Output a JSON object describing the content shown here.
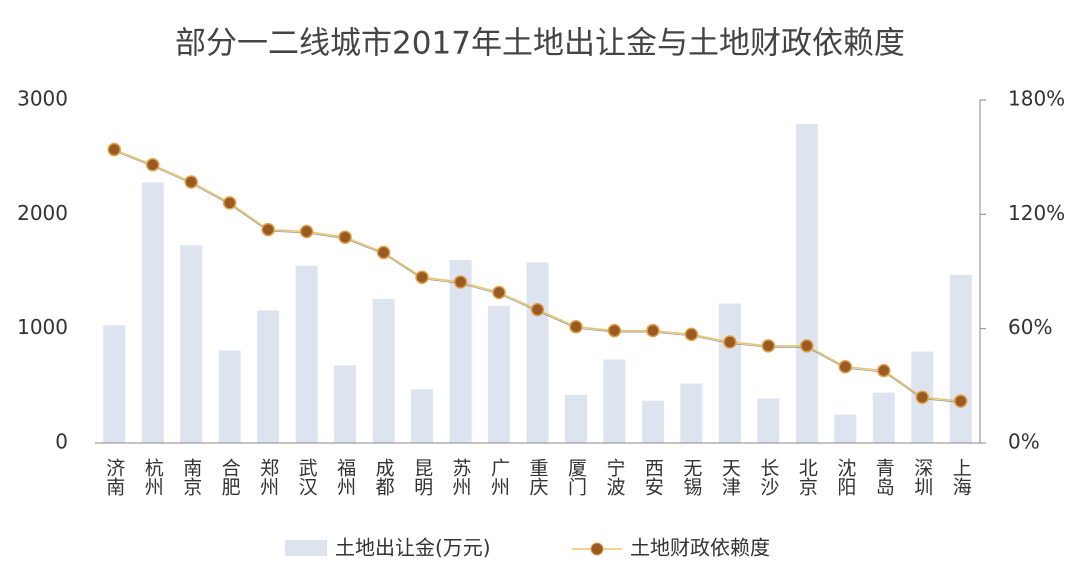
{
  "chart_data": {
    "type": "bar-line",
    "title": "部分一二线城市2017年土地出让金与土地财政依赖度",
    "categories": [
      "济南",
      "杭州",
      "南京",
      "合肥",
      "郑州",
      "武汉",
      "福州",
      "成都",
      "昆明",
      "苏州",
      "广州",
      "重庆",
      "厦门",
      "宁波",
      "西安",
      "无锡",
      "天津",
      "长沙",
      "北京",
      "沈阳",
      "青岛",
      "深圳",
      "上海"
    ],
    "series": [
      {
        "name": "土地出让金(万元)",
        "type": "bar",
        "color": "#dde4ef",
        "values": [
          1030,
          2280,
          1730,
          810,
          1160,
          1550,
          680,
          1260,
          470,
          1600,
          1200,
          1580,
          420,
          730,
          370,
          520,
          1220,
          390,
          2790,
          250,
          440,
          800,
          1470
        ]
      },
      {
        "name": "土地财政依赖度",
        "type": "line",
        "axis": "y2",
        "color": "#e9c46a",
        "marker_color": "#9a5b22",
        "values": [
          154,
          146,
          137,
          126,
          112,
          111,
          108,
          100,
          87,
          84.5,
          79,
          70,
          61,
          59,
          59,
          57,
          53,
          51,
          51,
          40,
          38,
          24,
          22
        ]
      }
    ],
    "ylim": [
      0,
      3000
    ],
    "yticks": [
      0,
      1000,
      2000,
      3000
    ],
    "y2lim": [
      0,
      180
    ],
    "y2ticks": [
      {
        "value": 0,
        "label": "0%"
      },
      {
        "value": 60,
        "label": "60%"
      },
      {
        "value": 120,
        "label": "120%"
      },
      {
        "value": 180,
        "label": "180%"
      }
    ],
    "grid": false,
    "legend": "bottom"
  }
}
